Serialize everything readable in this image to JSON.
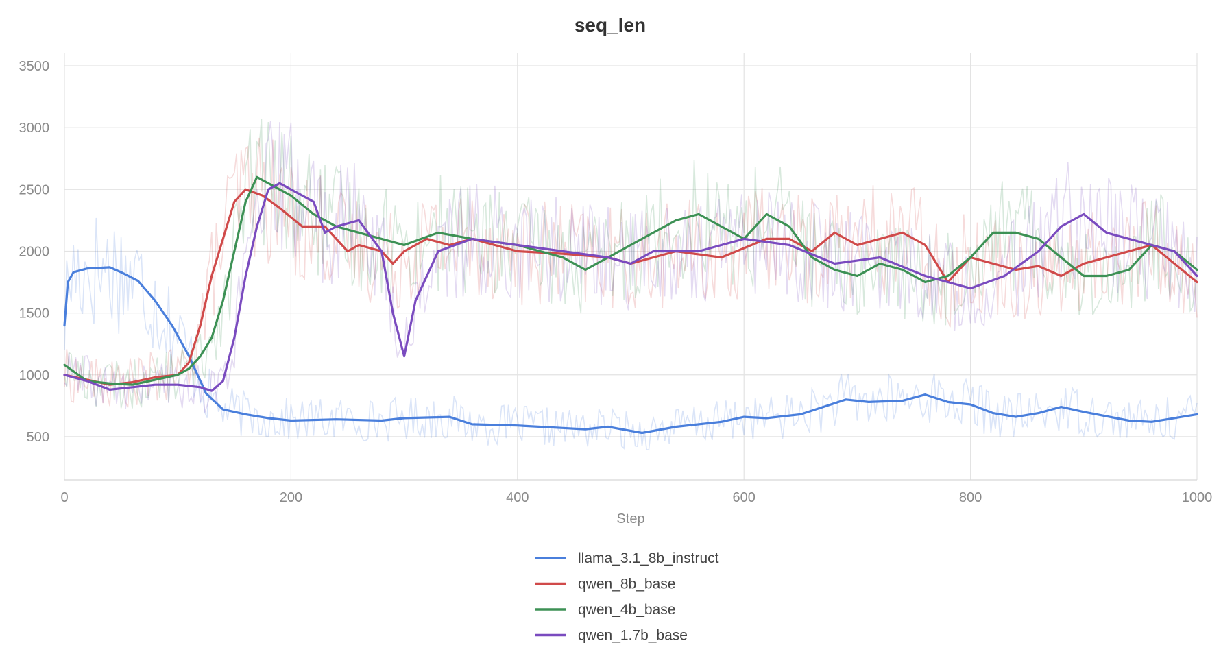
{
  "chart_data": {
    "type": "line",
    "title": "seq_len",
    "xlabel": "Step",
    "ylabel": "",
    "xlim": [
      0,
      1000
    ],
    "ylim": [
      150,
      3600
    ],
    "xticks": [
      0,
      200,
      400,
      600,
      800,
      1000
    ],
    "yticks": [
      500,
      1000,
      1500,
      2000,
      2500,
      3000,
      3500
    ],
    "grid": true,
    "legend_position": "bottom-center",
    "series": [
      {
        "name": "llama_3.1_8b_instruct",
        "color": "#4a7fdc",
        "x": [
          0,
          3,
          8,
          20,
          40,
          50,
          65,
          80,
          95,
          110,
          125,
          140,
          160,
          180,
          200,
          240,
          280,
          300,
          340,
          360,
          400,
          440,
          460,
          480,
          510,
          540,
          580,
          600,
          620,
          650,
          690,
          710,
          740,
          760,
          780,
          800,
          820,
          840,
          860,
          880,
          900,
          940,
          960,
          1000
        ],
        "y": [
          1400,
          1750,
          1830,
          1860,
          1870,
          1830,
          1760,
          1600,
          1400,
          1150,
          850,
          720,
          680,
          650,
          630,
          640,
          630,
          650,
          660,
          600,
          590,
          570,
          560,
          580,
          530,
          580,
          620,
          660,
          650,
          680,
          800,
          780,
          790,
          840,
          780,
          760,
          690,
          660,
          690,
          740,
          700,
          630,
          620,
          680
        ]
      },
      {
        "name": "qwen_8b_base",
        "color": "#d04a4a",
        "x": [
          0,
          20,
          40,
          60,
          80,
          100,
          110,
          120,
          130,
          140,
          150,
          160,
          175,
          190,
          210,
          230,
          250,
          260,
          280,
          290,
          300,
          320,
          340,
          360,
          400,
          440,
          480,
          500,
          540,
          580,
          620,
          640,
          660,
          680,
          700,
          720,
          740,
          760,
          780,
          800,
          820,
          840,
          860,
          880,
          900,
          920,
          960,
          980,
          1000
        ],
        "y": [
          1000,
          960,
          920,
          940,
          980,
          1000,
          1100,
          1400,
          1800,
          2100,
          2400,
          2500,
          2450,
          2350,
          2200,
          2200,
          2000,
          2050,
          2000,
          1900,
          2000,
          2100,
          2050,
          2100,
          2000,
          1980,
          1950,
          1900,
          2000,
          1950,
          2100,
          2100,
          2000,
          2150,
          2050,
          2100,
          2150,
          2050,
          1750,
          1950,
          1900,
          1850,
          1880,
          1800,
          1900,
          1950,
          2050,
          1900,
          1750
        ]
      },
      {
        "name": "qwen_4b_base",
        "color": "#3d9155",
        "x": [
          0,
          20,
          40,
          60,
          80,
          100,
          110,
          120,
          130,
          140,
          150,
          160,
          170,
          180,
          200,
          220,
          240,
          260,
          280,
          300,
          330,
          360,
          400,
          440,
          460,
          480,
          500,
          520,
          540,
          560,
          580,
          600,
          620,
          640,
          660,
          680,
          700,
          720,
          740,
          760,
          780,
          800,
          820,
          840,
          860,
          880,
          900,
          920,
          940,
          960,
          980,
          1000
        ],
        "y": [
          1080,
          950,
          930,
          920,
          960,
          1000,
          1050,
          1150,
          1300,
          1600,
          2000,
          2400,
          2600,
          2550,
          2450,
          2300,
          2200,
          2150,
          2100,
          2050,
          2150,
          2100,
          2050,
          1950,
          1850,
          1950,
          2050,
          2150,
          2250,
          2300,
          2200,
          2100,
          2300,
          2200,
          1950,
          1850,
          1800,
          1900,
          1850,
          1750,
          1800,
          1950,
          2150,
          2150,
          2100,
          1950,
          1800,
          1800,
          1850,
          2050,
          2000,
          1850
        ]
      },
      {
        "name": "qwen_1.7b_base",
        "color": "#7a4bbf",
        "x": [
          0,
          20,
          40,
          60,
          80,
          100,
          120,
          130,
          140,
          150,
          160,
          170,
          180,
          190,
          200,
          220,
          230,
          240,
          260,
          280,
          290,
          300,
          310,
          330,
          360,
          400,
          440,
          480,
          500,
          520,
          560,
          600,
          640,
          680,
          720,
          760,
          780,
          800,
          830,
          860,
          880,
          900,
          920,
          940,
          960,
          980,
          1000
        ],
        "y": [
          1000,
          950,
          880,
          900,
          920,
          920,
          900,
          870,
          950,
          1300,
          1800,
          2200,
          2500,
          2550,
          2500,
          2400,
          2150,
          2200,
          2250,
          2000,
          1500,
          1150,
          1600,
          2000,
          2100,
          2050,
          2000,
          1950,
          1900,
          2000,
          2000,
          2100,
          2050,
          1900,
          1950,
          1800,
          1750,
          1700,
          1800,
          2000,
          2200,
          2300,
          2150,
          2100,
          2050,
          2000,
          1800
        ]
      }
    ]
  }
}
